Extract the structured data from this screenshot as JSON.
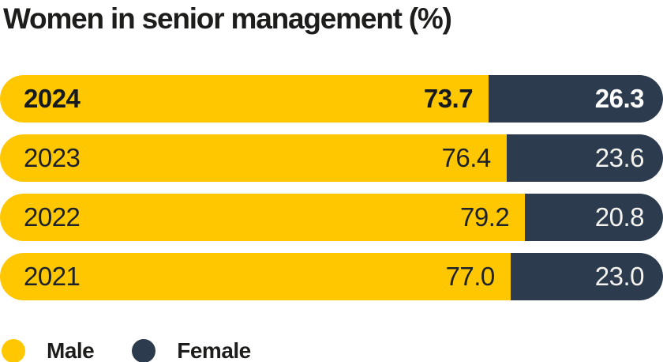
{
  "title": "Women in senior management (%)",
  "colors": {
    "male": "#FEC700",
    "female": "#2C3B4D",
    "text_dark": "#1D2129",
    "text_light": "#FFFFFF",
    "background": "#FFFFFF"
  },
  "legend": {
    "items": [
      {
        "label": "Male",
        "color": "#FEC700"
      },
      {
        "label": "Female",
        "color": "#2C3B4D"
      }
    ],
    "position": "bottom"
  },
  "chart_data": {
    "type": "bar",
    "orientation": "horizontal",
    "stacked": true,
    "units": "%",
    "title": "Women in senior management (%)",
    "categories": [
      "2024",
      "2023",
      "2022",
      "2021"
    ],
    "series": [
      {
        "name": "Male",
        "color": "#FEC700",
        "values": [
          73.7,
          76.4,
          79.2,
          77.0
        ]
      },
      {
        "name": "Female",
        "color": "#2C3B4D",
        "values": [
          26.3,
          23.6,
          20.8,
          23.0
        ]
      }
    ],
    "rows": [
      {
        "year": "2024",
        "male": "73.7",
        "female": "26.3",
        "highlighted": true
      },
      {
        "year": "2023",
        "male": "76.4",
        "female": "23.6",
        "highlighted": false
      },
      {
        "year": "2022",
        "male": "79.2",
        "female": "20.8",
        "highlighted": false
      },
      {
        "year": "2021",
        "male": "77.0",
        "female": "23.0",
        "highlighted": false
      }
    ],
    "xlim": [
      0,
      100
    ],
    "grid": false,
    "legend_position": "bottom"
  }
}
